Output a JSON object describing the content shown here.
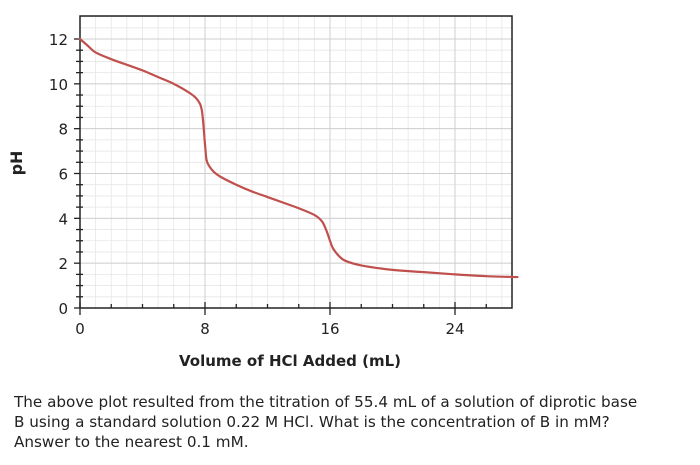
{
  "chart_data": {
    "type": "line",
    "xlabel": "Volume of HCl Added (mL)",
    "ylabel": "pH",
    "xlim": [
      0,
      28
    ],
    "ylim": [
      0,
      13
    ],
    "x_ticks": [
      0,
      8,
      16,
      24
    ],
    "y_ticks": [
      0,
      2,
      4,
      6,
      8,
      10,
      12
    ],
    "grid": true,
    "legend": "none",
    "line_color": "#c0504d",
    "series": [
      {
        "x": [
          0,
          0.5,
          1,
          2,
          3,
          4,
          5,
          6,
          7,
          7.5,
          7.8,
          8.0,
          8.1,
          8.3,
          8.6,
          9,
          10,
          11,
          12,
          13,
          14,
          15,
          15.5,
          15.8,
          16.0,
          16.2,
          16.6,
          17,
          18,
          20,
          22,
          24,
          26,
          28
        ],
        "y": [
          12.0,
          11.7,
          11.4,
          11.1,
          10.85,
          10.6,
          10.3,
          10.0,
          9.6,
          9.3,
          8.8,
          7.3,
          6.6,
          6.3,
          6.05,
          5.85,
          5.5,
          5.2,
          4.95,
          4.7,
          4.45,
          4.15,
          3.85,
          3.4,
          3.0,
          2.65,
          2.3,
          2.1,
          1.9,
          1.7,
          1.6,
          1.5,
          1.42,
          1.38
        ]
      }
    ]
  },
  "question": {
    "line1": "The above plot resulted from the titration of 55.4 mL of a solution of diprotic base",
    "line2": "B using a standard solution 0.22 M HCl. What is the concentration of B in mM?",
    "line3": "Answer to the nearest 0.1 mM."
  }
}
